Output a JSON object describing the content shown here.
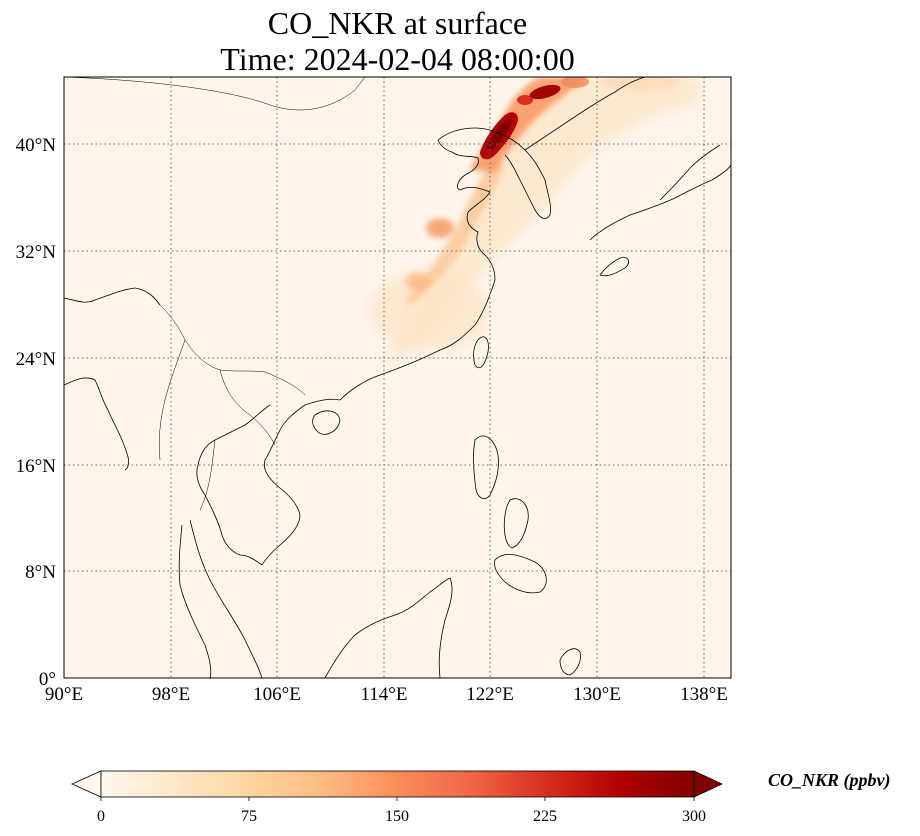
{
  "title": {
    "line1": "CO_NKR at surface",
    "line2": "Time: 2024-02-04 08:00:00"
  },
  "map": {
    "lon_range": [
      90,
      140
    ],
    "lat_range": [
      0,
      45
    ],
    "lon_ticks": [
      "90°E",
      "98°E",
      "106°E",
      "114°E",
      "122°E",
      "130°E",
      "138°E"
    ],
    "lat_ticks": [
      "0°",
      "8°N",
      "16°N",
      "24°N",
      "32°N",
      "40°N"
    ],
    "gridlines": "dotted",
    "background_color": "#fff5eb",
    "coastline_color": "#000000"
  },
  "colorbar": {
    "label": "CO_NKR (ppbv)",
    "colormap": "OrRd",
    "min": 0,
    "max": 300,
    "extend": "both",
    "ticks": [
      "0",
      "75",
      "150",
      "225",
      "300"
    ],
    "colors": [
      "#fff7ec",
      "#fee8c8",
      "#fdd49e",
      "#fdbb84",
      "#fc8d59",
      "#ef6548",
      "#d7301f",
      "#b30000",
      "#7f0000"
    ]
  }
}
